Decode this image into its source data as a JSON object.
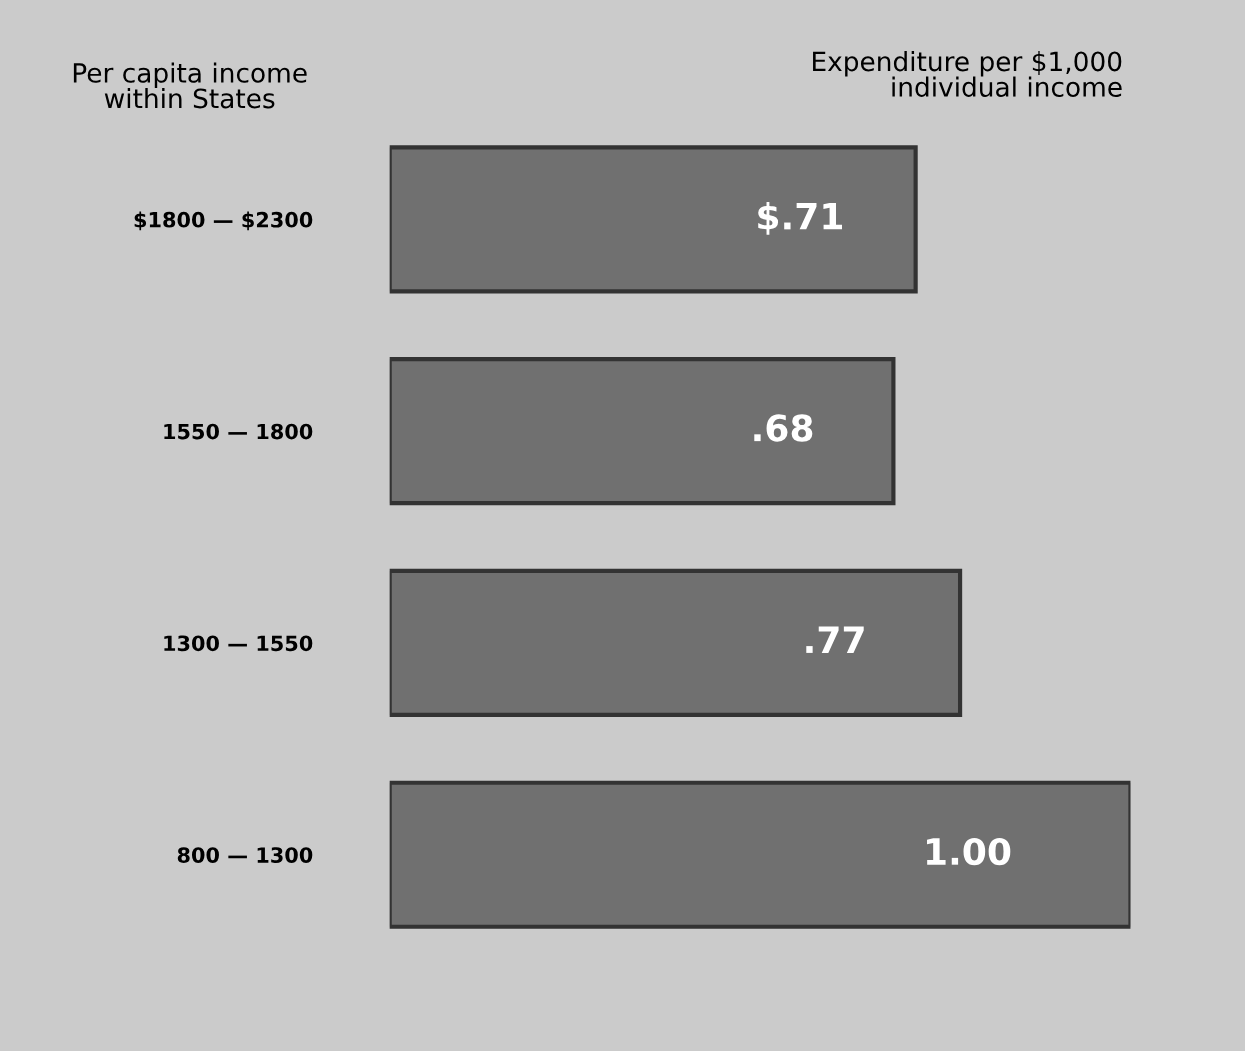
{
  "chart_data": {
    "type": "bar",
    "orientation": "horizontal",
    "xlabel": "Expenditure per $1,000\nindividual income",
    "ylabel": "Per capita income\nwithin States",
    "categories": [
      "$1800 — $2300",
      "1550 — 1800",
      "1300 — 1550",
      "800 — 1300"
    ],
    "values": [
      0.71,
      0.68,
      0.77,
      1.0
    ],
    "value_labels": [
      "$.71",
      ".68",
      ".77",
      "1.00"
    ],
    "color": "#707070",
    "grid": false,
    "legend": false
  }
}
